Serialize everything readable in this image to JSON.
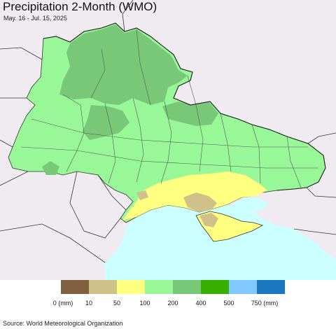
{
  "header": {
    "title": "Precipitation 2-Month (WMO)",
    "subtitle": "May. 16 - Jul. 15, 2025"
  },
  "map": {
    "colors": {
      "outside_land": "#f0ebf0",
      "sea": "#ccffff",
      "border": "#222222"
    }
  },
  "legend": {
    "bins": [
      {
        "color": "#806040"
      },
      {
        "color": "#d0c08a"
      },
      {
        "color": "#ffff80"
      },
      {
        "color": "#98f898"
      },
      {
        "color": "#78c878"
      },
      {
        "color": "#38b000"
      },
      {
        "color": "#80c8ff"
      },
      {
        "color": "#1a78c0"
      }
    ],
    "ticks": [
      "0 (mm)",
      "10",
      "50",
      "100",
      "200",
      "400",
      "500",
      "750 (mm)"
    ]
  },
  "footer": {
    "source": "Source: World Meteorological Organization"
  }
}
